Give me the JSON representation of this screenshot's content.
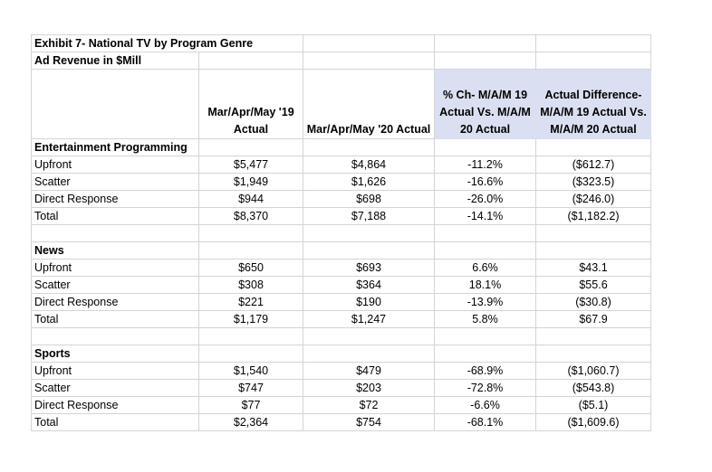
{
  "title": "Exhibit 7- National TV by Program Genre",
  "subtitle": "Ad Revenue in $Mill",
  "header_fill": "#dae0f1",
  "columns": [
    "",
    "Mar/Apr/May '19 Actual",
    "Mar/Apr/May '20 Actual",
    "% Ch- M/A/M 19 Actual Vs. M/A/M 20 Actual",
    "Actual Difference- M/A/M 19 Actual Vs. M/A/M 20 Actual"
  ],
  "sections": [
    {
      "name": "Entertainment Programming",
      "rows": [
        [
          "Upfront",
          "$5,477",
          "$4,864",
          "-11.2%",
          "($612.7)"
        ],
        [
          "Scatter",
          "$1,949",
          "$1,626",
          "-16.6%",
          "($323.5)"
        ],
        [
          "Direct Response",
          "$944",
          "$698",
          "-26.0%",
          "($246.0)"
        ],
        [
          "Total",
          "$8,370",
          "$7,188",
          "-14.1%",
          "($1,182.2)"
        ]
      ]
    },
    {
      "name": "News",
      "rows": [
        [
          "Upfront",
          "$650",
          "$693",
          "6.6%",
          "$43.1"
        ],
        [
          "Scatter",
          "$308",
          "$364",
          "18.1%",
          "$55.6"
        ],
        [
          "Direct Response",
          "$221",
          "$190",
          "-13.9%",
          "($30.8)"
        ],
        [
          "Total",
          "$1,179",
          "$1,247",
          "5.8%",
          "$67.9"
        ]
      ]
    },
    {
      "name": "Sports",
      "rows": [
        [
          "Upfront",
          "$1,540",
          "$479",
          "-68.9%",
          "($1,060.7)"
        ],
        [
          "Scatter",
          "$747",
          "$203",
          "-72.8%",
          "($543.8)"
        ],
        [
          "Direct Response",
          "$77",
          "$72",
          "-6.6%",
          "($5.1)"
        ],
        [
          "Total",
          "$2,364",
          "$754",
          "-68.1%",
          "($1,609.6)"
        ]
      ]
    }
  ]
}
